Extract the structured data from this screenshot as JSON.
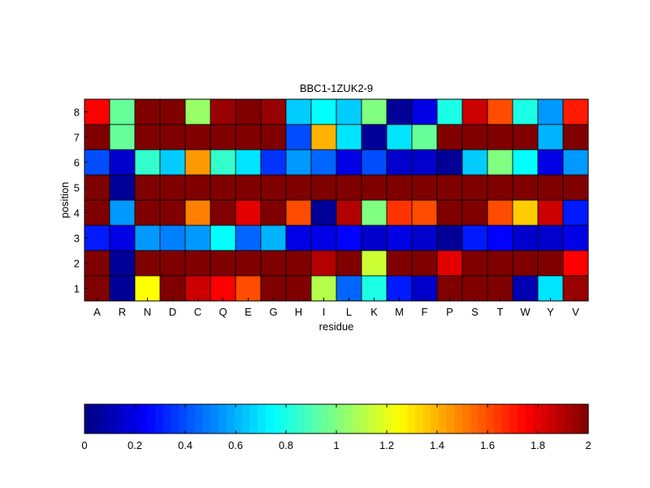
{
  "chart_data": {
    "type": "heatmap",
    "title": "BBC1-1ZUK2-9",
    "xlabel": "residue",
    "ylabel": "position",
    "x_categories": [
      "A",
      "R",
      "N",
      "D",
      "C",
      "Q",
      "E",
      "G",
      "H",
      "I",
      "L",
      "K",
      "M",
      "F",
      "P",
      "S",
      "T",
      "W",
      "Y",
      "V"
    ],
    "y_categories": [
      "1",
      "2",
      "3",
      "4",
      "5",
      "6",
      "7",
      "8"
    ],
    "colormap": "jet",
    "clim": [
      0,
      2
    ],
    "colorbar": {
      "orientation": "horizontal",
      "placement": "bottom",
      "ticks": [
        0,
        0.2,
        0.4,
        0.6,
        0.8,
        1,
        1.2,
        1.4,
        1.6,
        1.8,
        2
      ],
      "tick_labels": [
        "0",
        "0.2",
        "0.4",
        "0.6",
        "0.8",
        "1",
        "1.2",
        "1.4",
        "1.6",
        "1.8",
        "2"
      ]
    },
    "grid": false,
    "values_by_position": {
      "8": [
        1.75,
        0.95,
        2.0,
        2.0,
        1.05,
        1.95,
        2.0,
        1.95,
        0.65,
        0.75,
        0.65,
        1.0,
        0.05,
        0.2,
        0.8,
        1.85,
        1.6,
        0.8,
        0.55,
        1.7
      ],
      "7": [
        2.0,
        0.95,
        2.0,
        2.0,
        2.0,
        2.0,
        2.0,
        2.0,
        0.4,
        1.4,
        0.7,
        0.05,
        0.7,
        0.95,
        2.0,
        2.0,
        2.0,
        2.0,
        0.6,
        2.0
      ],
      "6": [
        0.4,
        0.15,
        0.85,
        0.65,
        1.45,
        0.85,
        0.7,
        0.35,
        0.55,
        0.45,
        0.2,
        0.4,
        0.15,
        0.15,
        0.05,
        0.65,
        1.0,
        0.75,
        0.2,
        0.55
      ],
      "5": [
        2.0,
        0.05,
        2.0,
        2.0,
        2.0,
        2.0,
        2.0,
        2.0,
        2.0,
        2.0,
        2.0,
        2.0,
        2.0,
        2.0,
        2.0,
        2.0,
        2.0,
        2.0,
        2.0,
        2.0
      ],
      "4": [
        2.0,
        0.55,
        2.0,
        2.0,
        1.5,
        2.0,
        1.8,
        2.0,
        1.6,
        0.05,
        1.9,
        1.0,
        1.65,
        1.6,
        2.0,
        2.0,
        1.6,
        1.35,
        1.85,
        0.3
      ],
      "3": [
        0.3,
        0.2,
        0.55,
        0.5,
        0.55,
        0.75,
        0.45,
        0.6,
        0.2,
        0.2,
        0.25,
        0.15,
        0.2,
        0.15,
        0.05,
        0.3,
        0.25,
        0.15,
        0.15,
        0.2
      ],
      "2": [
        2.0,
        0.05,
        2.0,
        2.0,
        2.0,
        2.0,
        2.0,
        2.0,
        2.0,
        1.9,
        2.0,
        1.15,
        2.0,
        2.0,
        1.8,
        2.0,
        2.0,
        2.0,
        2.0,
        1.75
      ],
      "1": [
        2.0,
        0.05,
        1.25,
        2.0,
        1.85,
        1.75,
        1.6,
        2.0,
        2.0,
        1.1,
        0.45,
        0.8,
        0.3,
        0.15,
        2.0,
        2.0,
        2.0,
        0.1,
        0.7,
        1.95
      ]
    }
  }
}
